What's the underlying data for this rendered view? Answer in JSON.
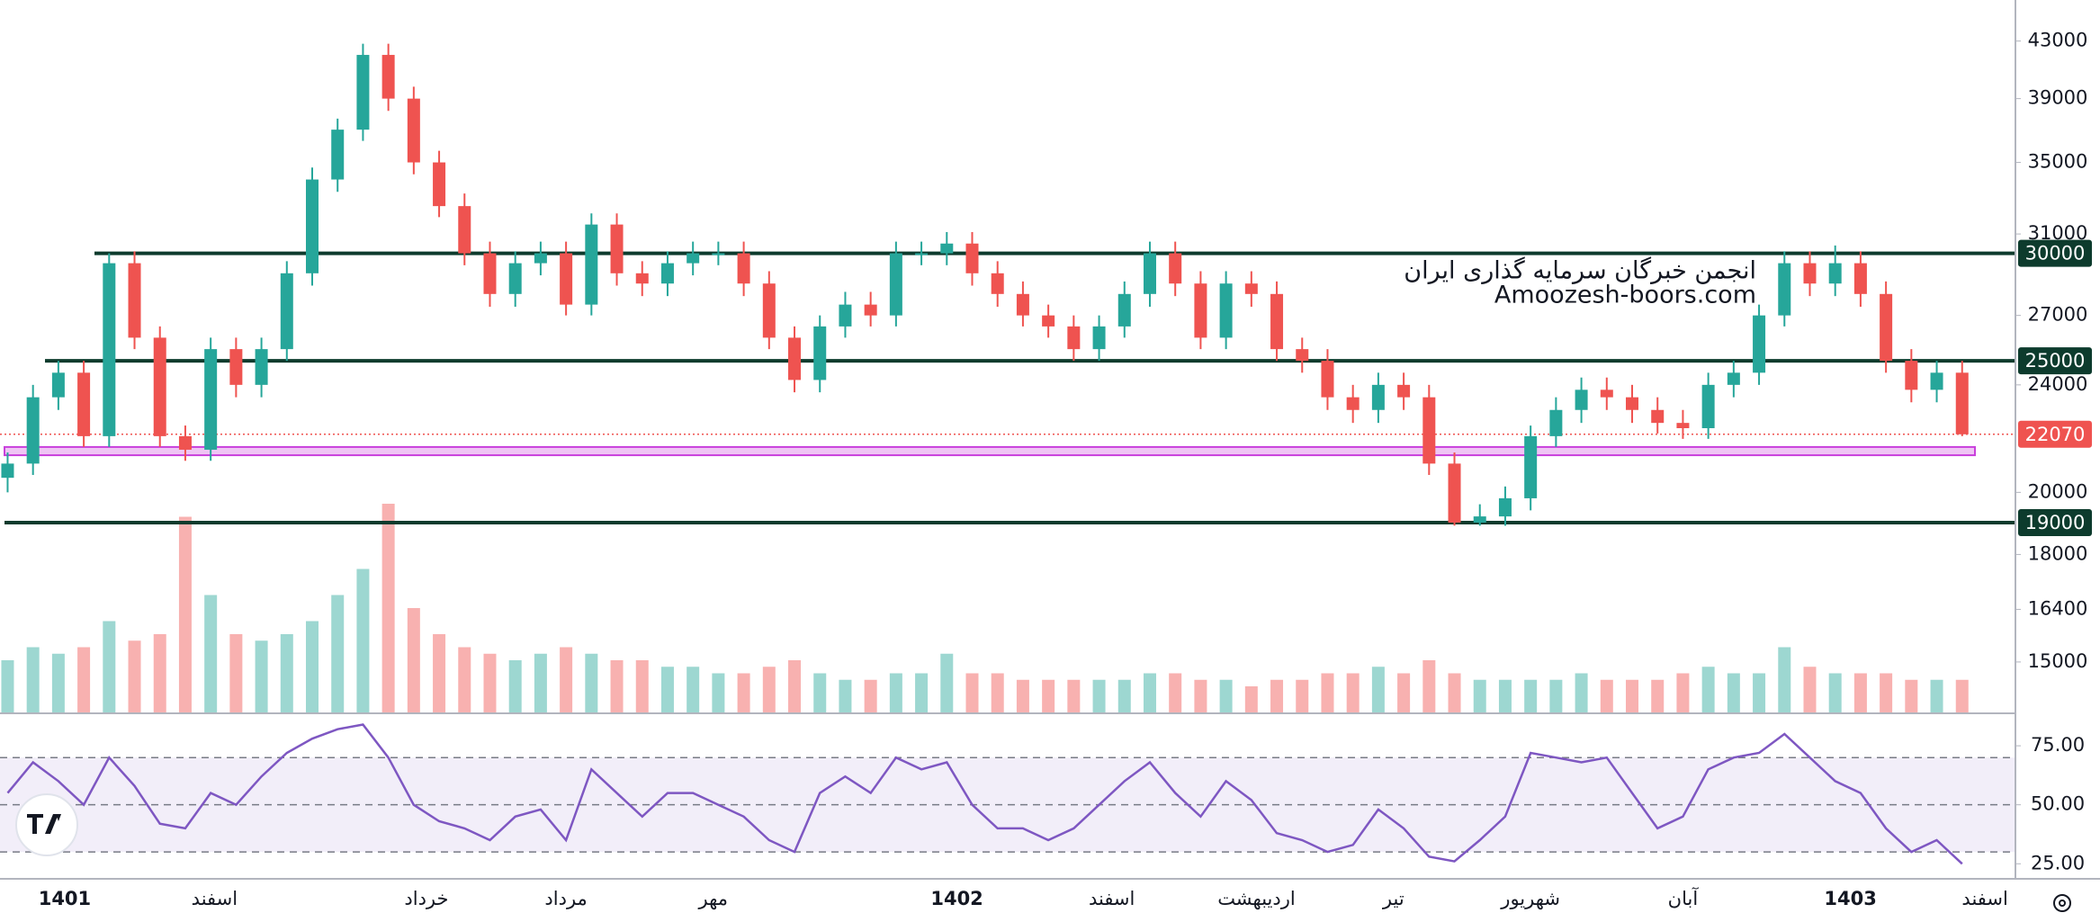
{
  "chart_data": [
    {
      "type": "candlestick",
      "ohlc": [
        [
          20500,
          21400,
          20000,
          21000
        ],
        [
          21000,
          24000,
          20600,
          23500
        ],
        [
          23500,
          25000,
          23000,
          24500
        ],
        [
          24500,
          25000,
          21600,
          22000
        ],
        [
          22000,
          30000,
          21600,
          29500
        ],
        [
          29500,
          30100,
          25500,
          26000
        ],
        [
          26000,
          26500,
          21600,
          22000
        ],
        [
          22000,
          22400,
          21100,
          21500
        ],
        [
          21500,
          26000,
          21100,
          25500
        ],
        [
          25500,
          26000,
          23500,
          24000
        ],
        [
          24000,
          26000,
          23500,
          25500
        ],
        [
          25500,
          29600,
          25000,
          29000
        ],
        [
          29000,
          34700,
          28400,
          34000
        ],
        [
          34000,
          37700,
          33300,
          37000
        ],
        [
          37000,
          42800,
          36300,
          42000
        ],
        [
          42000,
          42800,
          38200,
          39000
        ],
        [
          39000,
          39800,
          34300,
          35000
        ],
        [
          35000,
          35700,
          31900,
          32500
        ],
        [
          32500,
          33200,
          29400,
          30000
        ],
        [
          30000,
          30600,
          27400,
          28000
        ],
        [
          28000,
          30100,
          27400,
          29500
        ],
        [
          29500,
          30600,
          28900,
          30000
        ],
        [
          30000,
          30600,
          27000,
          27500
        ],
        [
          27500,
          32100,
          27000,
          31500
        ],
        [
          31500,
          32100,
          28400,
          29000
        ],
        [
          29000,
          29600,
          27900,
          28500
        ],
        [
          28500,
          30100,
          27900,
          29500
        ],
        [
          29500,
          30600,
          28900,
          30000
        ],
        [
          30000,
          30600,
          29400,
          30000
        ],
        [
          30000,
          30600,
          27900,
          28500
        ],
        [
          28500,
          29100,
          25500,
          26000
        ],
        [
          26000,
          26500,
          23700,
          24200
        ],
        [
          24200,
          27000,
          23700,
          26500
        ],
        [
          26500,
          28100,
          26000,
          27500
        ],
        [
          27500,
          28100,
          26500,
          27000
        ],
        [
          27000,
          30600,
          26500,
          30000
        ],
        [
          30000,
          30600,
          29400,
          30000
        ],
        [
          30000,
          31100,
          29400,
          30500
        ],
        [
          30500,
          31100,
          28400,
          29000
        ],
        [
          29000,
          29600,
          27400,
          28000
        ],
        [
          28000,
          28600,
          26500,
          27000
        ],
        [
          27000,
          27500,
          26000,
          26500
        ],
        [
          26500,
          27000,
          25000,
          25500
        ],
        [
          25500,
          27000,
          25000,
          26500
        ],
        [
          26500,
          28600,
          26000,
          28000
        ],
        [
          28000,
          30600,
          27400,
          30000
        ],
        [
          30000,
          30600,
          27900,
          28500
        ],
        [
          28500,
          29100,
          25500,
          26000
        ],
        [
          26000,
          29100,
          25500,
          28500
        ],
        [
          28500,
          29100,
          27400,
          28000
        ],
        [
          28000,
          28600,
          25000,
          25500
        ],
        [
          25500,
          26000,
          24500,
          25000
        ],
        [
          25000,
          25500,
          23000,
          23500
        ],
        [
          23500,
          24000,
          22500,
          23000
        ],
        [
          23000,
          24500,
          22500,
          24000
        ],
        [
          24000,
          24500,
          23000,
          23500
        ],
        [
          23500,
          24000,
          20600,
          21000
        ],
        [
          21000,
          21400,
          18900,
          19000
        ],
        [
          19000,
          19600,
          18900,
          19200
        ],
        [
          19200,
          20200,
          18900,
          19800
        ],
        [
          19800,
          22400,
          19400,
          22000
        ],
        [
          22000,
          23500,
          21600,
          23000
        ],
        [
          23000,
          24300,
          22500,
          23800
        ],
        [
          23800,
          24300,
          23000,
          23500
        ],
        [
          23500,
          24000,
          22500,
          23000
        ],
        [
          23000,
          23500,
          22100,
          22500
        ],
        [
          22500,
          23000,
          21900,
          22300
        ],
        [
          22300,
          24500,
          21900,
          24000
        ],
        [
          24000,
          25000,
          23500,
          24500
        ],
        [
          24500,
          27500,
          24000,
          27000
        ],
        [
          27000,
          30100,
          26500,
          29500
        ],
        [
          29500,
          30100,
          27900,
          28500
        ],
        [
          28500,
          30400,
          27900,
          29500
        ],
        [
          29500,
          30100,
          27400,
          28000
        ],
        [
          28000,
          28600,
          24500,
          25000
        ],
        [
          25000,
          25500,
          23300,
          23800
        ],
        [
          23800,
          25000,
          23300,
          24500
        ],
        [
          24500,
          25000,
          22000,
          22070
        ]
      ],
      "volume": [
        40,
        50,
        45,
        50,
        70,
        55,
        60,
        150,
        90,
        60,
        55,
        60,
        70,
        90,
        110,
        160,
        80,
        60,
        50,
        45,
        40,
        45,
        50,
        45,
        40,
        40,
        35,
        35,
        30,
        30,
        35,
        40,
        30,
        25,
        25,
        30,
        30,
        45,
        30,
        30,
        25,
        25,
        25,
        25,
        25,
        30,
        30,
        25,
        25,
        20,
        25,
        25,
        30,
        30,
        35,
        30,
        40,
        30,
        25,
        25,
        25,
        25,
        30,
        25,
        25,
        25,
        30,
        35,
        30,
        30,
        50,
        35,
        30,
        30,
        30,
        25,
        25,
        25
      ],
      "vlim": [
        0,
        160
      ],
      "log": true,
      "ylim": [
        13770,
        46100
      ],
      "yticks": [
        43000,
        39000,
        35000,
        31000,
        27000,
        24000,
        20000,
        18000,
        16400,
        15000
      ],
      "xlim": [
        -0.3,
        79.1
      ],
      "xticks": [
        {
          "value": 2.25,
          "label": "1401"
        },
        {
          "value": 8.15,
          "label": "اسفند"
        },
        {
          "value": 16.5,
          "label": "خرداد"
        },
        {
          "value": 22,
          "label": "مرداد"
        },
        {
          "value": 27.8,
          "label": "مهر"
        },
        {
          "value": 37.4,
          "label": "1402"
        },
        {
          "value": 43.5,
          "label": "اسفند"
        },
        {
          "value": 49.2,
          "label": "اردیبهشت"
        },
        {
          "value": 54.6,
          "label": "تیر"
        },
        {
          "value": 60,
          "label": "شهریور"
        },
        {
          "value": 66,
          "label": "آبان"
        },
        {
          "value": 72.6,
          "label": "1403"
        },
        {
          "value": 77.9,
          "label": "اسفند"
        }
      ],
      "up_color": "#26a69a",
      "down_color": "#ef5350",
      "levels": [
        30000,
        25000,
        19000
      ],
      "level_color": "#0d3b2d",
      "last_price": 22070,
      "zone": [
        21300,
        21600
      ],
      "zone_color": "#c940dc",
      "watermark": [
        "انجمن خبرگان سرمایه گذاری ایران",
        "Amoozesh-boors.com"
      ]
    },
    {
      "type": "line",
      "values": [
        55,
        68,
        60,
        50,
        70,
        58,
        42,
        40,
        55,
        50,
        62,
        72,
        78,
        82,
        84,
        70,
        50,
        43,
        40,
        35,
        45,
        48,
        35,
        65,
        55,
        45,
        55,
        55,
        50,
        45,
        35,
        30,
        55,
        62,
        55,
        70,
        65,
        68,
        50,
        40,
        40,
        35,
        40,
        50,
        60,
        68,
        55,
        45,
        60,
        52,
        38,
        35,
        30,
        33,
        48,
        40,
        28,
        26,
        35,
        45,
        72,
        70,
        68,
        70,
        55,
        40,
        45,
        65,
        70,
        72,
        80,
        70,
        60,
        55,
        40,
        30,
        35,
        25
      ],
      "color": "#7e57c2",
      "ylim": [
        19,
        88
      ],
      "yticks": [
        {
          "value": 75,
          "label": "75.00"
        },
        {
          "value": 50,
          "label": "50.00"
        },
        {
          "value": 25,
          "label": "25.00"
        }
      ],
      "bands": [
        70,
        50,
        30
      ]
    }
  ]
}
